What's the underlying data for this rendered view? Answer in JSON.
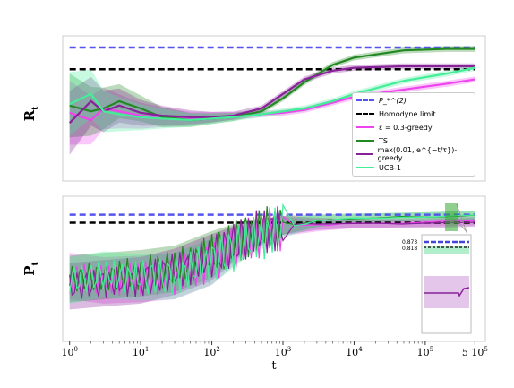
{
  "chart_data": [
    {
      "panel": "top",
      "type": "line",
      "ylabel": "R_t",
      "xlabel": "",
      "xscale": "log",
      "xlim": [
        0.8,
        700000
      ],
      "ylim": [
        0,
        1
      ],
      "grid": false,
      "legend_position": "lower-right",
      "reference_lines": [
        {
          "name": "P_*^(2)",
          "value": 0.92,
          "color": "#5555ee",
          "style": "dashed"
        },
        {
          "name": "Homodyne limit",
          "value": 0.77,
          "color": "#000000",
          "style": "dashed"
        }
      ],
      "series": [
        {
          "name": "ε = 0.3-greedy",
          "color": "#ee44ee",
          "x": [
            1,
            2,
            3,
            5,
            10,
            20,
            50,
            100,
            200,
            500,
            1000,
            2000,
            5000,
            10000,
            50000,
            200000,
            500000
          ],
          "values": [
            0.47,
            0.42,
            0.5,
            0.48,
            0.45,
            0.44,
            0.43,
            0.44,
            0.45,
            0.46,
            0.47,
            0.49,
            0.54,
            0.58,
            0.63,
            0.67,
            0.7
          ]
        },
        {
          "name": "TS",
          "color": "#228822",
          "x": [
            1,
            2,
            3,
            5,
            10,
            20,
            50,
            100,
            200,
            500,
            1000,
            2000,
            5000,
            10000,
            50000,
            200000,
            500000
          ],
          "values": [
            0.52,
            0.48,
            0.5,
            0.55,
            0.5,
            0.44,
            0.42,
            0.43,
            0.44,
            0.48,
            0.57,
            0.68,
            0.8,
            0.85,
            0.9,
            0.91,
            0.91
          ]
        },
        {
          "name": "max(0.01, e^{-t/τ})-greedy",
          "color": "#882299",
          "x": [
            1,
            2,
            3,
            5,
            10,
            20,
            50,
            100,
            200,
            500,
            1000,
            2000,
            5000,
            10000,
            50000,
            200000,
            500000
          ],
          "values": [
            0.4,
            0.55,
            0.48,
            0.52,
            0.47,
            0.45,
            0.44,
            0.44,
            0.45,
            0.5,
            0.6,
            0.7,
            0.76,
            0.78,
            0.79,
            0.79,
            0.79
          ]
        },
        {
          "name": "UCB-1",
          "color": "#44ee99",
          "x": [
            1,
            2,
            3,
            5,
            10,
            20,
            50,
            100,
            200,
            500,
            1000,
            2000,
            5000,
            10000,
            50000,
            200000,
            500000
          ],
          "values": [
            0.53,
            0.6,
            0.48,
            0.46,
            0.44,
            0.43,
            0.42,
            0.43,
            0.44,
            0.46,
            0.48,
            0.5,
            0.55,
            0.6,
            0.69,
            0.74,
            0.78
          ]
        }
      ]
    },
    {
      "panel": "bottom",
      "type": "line",
      "ylabel": "P_t",
      "xlabel": "t",
      "xscale": "log",
      "xlim": [
        0.8,
        700000
      ],
      "ylim": [
        0,
        1
      ],
      "grid": false,
      "reference_lines": [
        {
          "name": "P_*^(2)",
          "value": 0.873,
          "color": "#5555ee",
          "style": "dashed"
        },
        {
          "name": "Homodyne limit",
          "value": 0.818,
          "color": "#000000",
          "style": "dashed"
        }
      ],
      "xticks": [
        "10^0",
        "10^1",
        "10^2",
        "10^3",
        "10^4",
        "10^5",
        "5 10^5"
      ],
      "series": [
        {
          "name": "ε = 0.3-greedy",
          "color": "#ee44ee",
          "x": [
            1,
            3,
            10,
            30,
            100,
            300,
            1000,
            3000,
            10000,
            100000,
            500000
          ],
          "values": [
            0.45,
            0.42,
            0.43,
            0.45,
            0.55,
            0.7,
            0.79,
            0.8,
            0.81,
            0.82,
            0.83
          ]
        },
        {
          "name": "TS",
          "color": "#228822",
          "x": [
            1,
            3,
            10,
            30,
            100,
            300,
            1000,
            3000,
            10000,
            100000,
            500000
          ],
          "values": [
            0.43,
            0.45,
            0.47,
            0.5,
            0.6,
            0.73,
            0.8,
            0.83,
            0.85,
            0.86,
            0.87
          ]
        },
        {
          "name": "max(0.01, e^{-t/τ})-greedy",
          "color": "#882299",
          "x": [
            1,
            3,
            10,
            30,
            100,
            300,
            1000,
            3000,
            10000,
            100000,
            500000
          ],
          "values": [
            0.38,
            0.4,
            0.42,
            0.48,
            0.58,
            0.72,
            0.8,
            0.81,
            0.81,
            0.81,
            0.82
          ]
        },
        {
          "name": "UCB-1",
          "color": "#44ee99",
          "x": [
            1,
            3,
            10,
            30,
            100,
            300,
            1000,
            3000,
            10000,
            100000,
            500000
          ],
          "values": [
            0.42,
            0.46,
            0.44,
            0.45,
            0.55,
            0.68,
            0.78,
            0.83,
            0.85,
            0.86,
            0.87
          ]
        }
      ],
      "inset": {
        "labels": [
          "0.873",
          "0.818"
        ]
      }
    }
  ],
  "legend": {
    "entries": [
      {
        "label": "P_*^(2)",
        "color": "#5555ee",
        "style": "dashed"
      },
      {
        "label": "Homodyne limit",
        "color": "#000000",
        "style": "dashed"
      },
      {
        "label": "ε = 0.3-greedy",
        "color": "#ee44ee",
        "style": "solid"
      },
      {
        "label": "TS",
        "color": "#228822",
        "style": "solid"
      },
      {
        "label": "max(0.01, e^{−t/τ})-greedy",
        "color": "#882299",
        "style": "solid"
      },
      {
        "label": "UCB-1",
        "color": "#44ee99",
        "style": "solid"
      }
    ]
  },
  "labels": {
    "top_ylabel": "R",
    "top_ylabel_sub": "t",
    "bottom_ylabel": "P",
    "bottom_ylabel_sub": "t",
    "xlabel": "t",
    "inset_hi": "0.873",
    "inset_lo": "0.818"
  }
}
